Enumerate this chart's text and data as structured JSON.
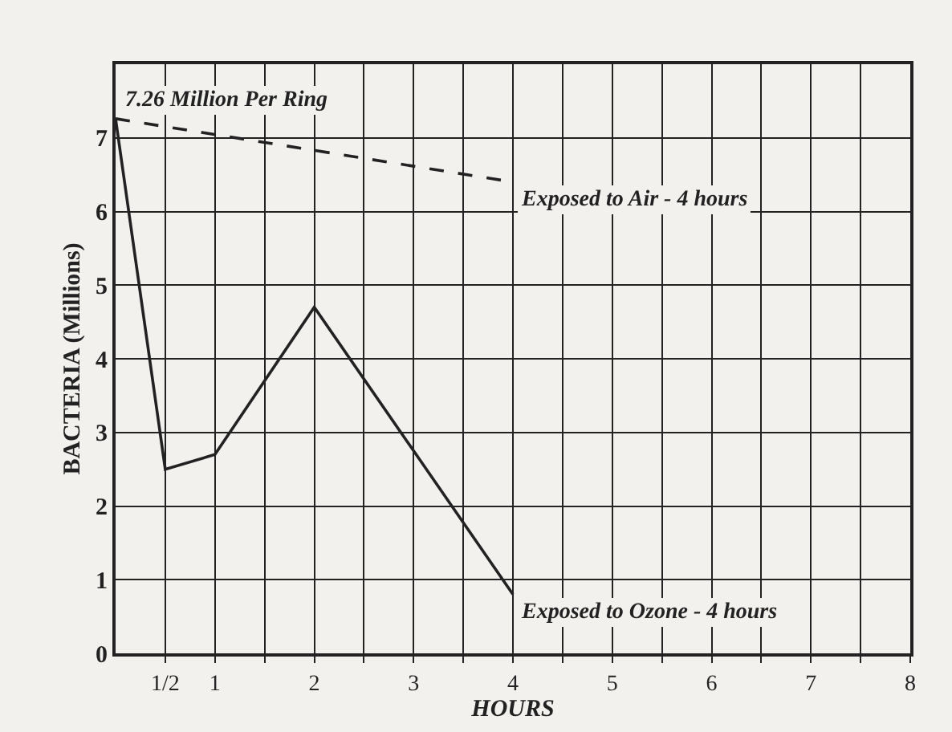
{
  "chart_data": {
    "type": "line",
    "xlabel": "HOURS",
    "ylabel": "BACTERIA (Millions)",
    "series": [
      {
        "name": "Exposed to Air - 4 hours",
        "color": "#222222",
        "line_style": "dashed",
        "x": [
          0,
          4
        ],
        "values": [
          7.26,
          6.4
        ]
      },
      {
        "name": "Exposed to Ozone - 4 hours",
        "color": "#222222",
        "line_style": "solid",
        "x": [
          0,
          0.5,
          1,
          2,
          4
        ],
        "values": [
          7.26,
          2.5,
          2.7,
          4.7,
          0.8
        ]
      }
    ],
    "annotations": [
      {
        "text": "7.26 Million Per Ring",
        "x": 0,
        "y": 7.26
      }
    ],
    "xlim": [
      0,
      8
    ],
    "ylim": [
      0,
      8
    ],
    "xticks": [
      {
        "value": 0.5,
        "label": "1/2"
      },
      1,
      {
        "value": 1.5,
        "label": null
      },
      2,
      {
        "value": 2.5,
        "label": null
      },
      3,
      {
        "value": 3.5,
        "label": null
      },
      4,
      {
        "value": 4.5,
        "label": null
      },
      5,
      {
        "value": 5.5,
        "label": null
      },
      6,
      {
        "value": 6.5,
        "label": null
      },
      7,
      {
        "value": 7.5,
        "label": null
      },
      8
    ],
    "yticks": [
      0,
      1,
      2,
      3,
      4,
      5,
      6,
      7
    ],
    "grid": true,
    "legend": false,
    "marker": "none"
  }
}
